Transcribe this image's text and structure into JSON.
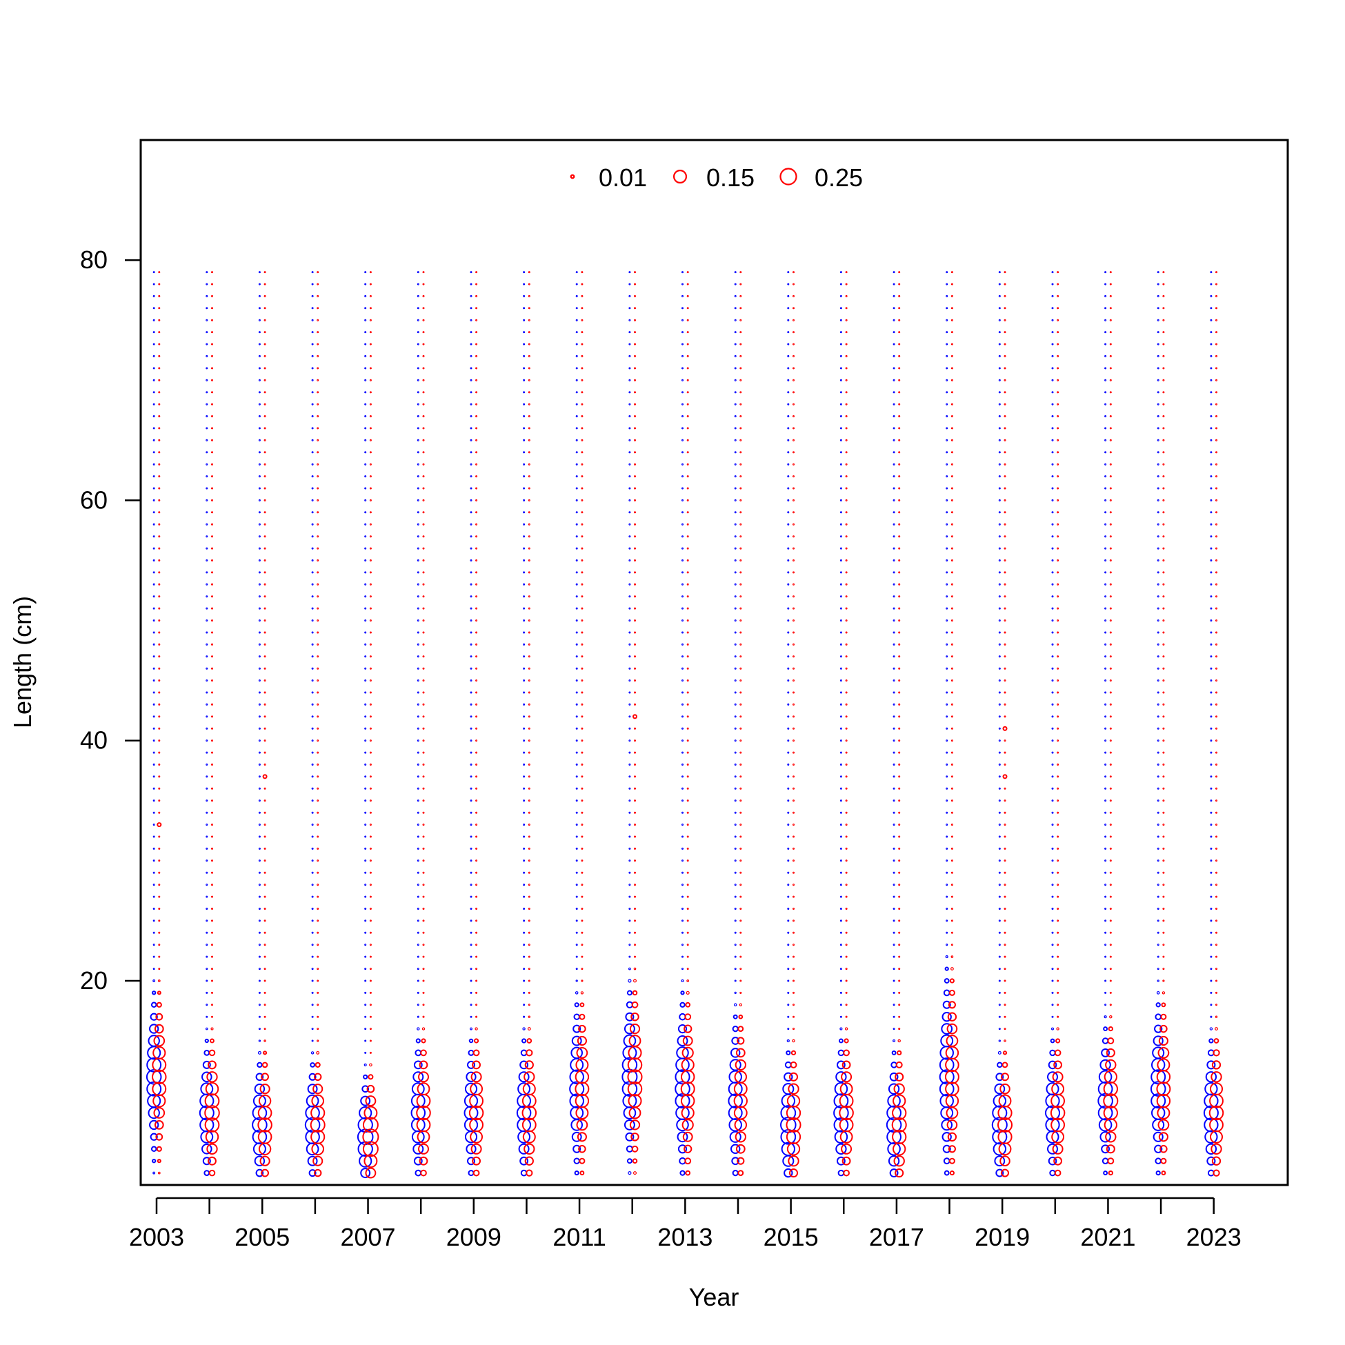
{
  "chart_data": {
    "type": "scatter",
    "subtype": "bubble",
    "xlabel": "Year",
    "ylabel": "Length (cm)",
    "xlim": [
      2002.7,
      2024.4
    ],
    "ylim": [
      3,
      90
    ],
    "x_ticks": [
      2003,
      2004,
      2005,
      2006,
      2007,
      2008,
      2009,
      2010,
      2011,
      2012,
      2013,
      2014,
      2015,
      2016,
      2017,
      2018,
      2019,
      2020,
      2021,
      2022,
      2023
    ],
    "x_tick_labels": [
      "2003",
      "2005",
      "2007",
      "2009",
      "2011",
      "2013",
      "2015",
      "2017",
      "2019",
      "2021",
      "2023"
    ],
    "y_ticks": [
      20,
      40,
      60,
      80
    ],
    "y_tick_labels": [
      "20",
      "40",
      "60",
      "80"
    ],
    "grid": false,
    "legend": {
      "placement": "top-center",
      "entries": [
        "0.01",
        "0.15",
        "0.25"
      ],
      "values": [
        0.01,
        0.15,
        0.25
      ]
    },
    "length_bins": [
      4,
      79
    ],
    "series": [
      {
        "color": "#0000ff",
        "x_offset": -0.05
      },
      {
        "color": "#ff0000",
        "x_offset": 0.05
      }
    ],
    "years": [
      {
        "year": 2003,
        "blue_peak": 12,
        "blue_amp": 0.2,
        "blue_sd": 2.8,
        "red_peak": 12,
        "red_amp": 0.18,
        "red_sd": 2.8,
        "red_outliers": [
          33
        ]
      },
      {
        "year": 2004,
        "blue_peak": 9,
        "blue_amp": 0.19,
        "blue_sd": 2.4,
        "red_peak": 9,
        "red_amp": 0.2,
        "red_sd": 2.5,
        "red_outliers": []
      },
      {
        "year": 2005,
        "blue_peak": 8,
        "blue_amp": 0.2,
        "blue_sd": 2.3,
        "red_peak": 8,
        "red_amp": 0.18,
        "red_sd": 2.4,
        "red_outliers": [
          37
        ]
      },
      {
        "year": 2006,
        "blue_peak": 8,
        "blue_amp": 0.2,
        "blue_sd": 2.2,
        "red_peak": 8,
        "red_amp": 0.19,
        "red_sd": 2.3,
        "red_outliers": []
      },
      {
        "year": 2007,
        "blue_peak": 7,
        "blue_amp": 0.22,
        "blue_sd": 2.1,
        "red_peak": 7,
        "red_amp": 0.23,
        "red_sd": 2.2,
        "red_outliers": []
      },
      {
        "year": 2008,
        "blue_peak": 9,
        "blue_amp": 0.18,
        "blue_sd": 2.6,
        "red_peak": 9,
        "red_amp": 0.18,
        "red_sd": 2.6,
        "red_outliers": []
      },
      {
        "year": 2009,
        "blue_peak": 9,
        "blue_amp": 0.17,
        "blue_sd": 2.5,
        "red_peak": 9,
        "red_amp": 0.18,
        "red_sd": 2.6,
        "red_outliers": []
      },
      {
        "year": 2010,
        "blue_peak": 9,
        "blue_amp": 0.18,
        "blue_sd": 2.6,
        "red_peak": 9,
        "red_amp": 0.18,
        "red_sd": 2.7,
        "red_outliers": []
      },
      {
        "year": 2011,
        "blue_peak": 11,
        "blue_amp": 0.19,
        "blue_sd": 3.0,
        "red_peak": 11,
        "red_amp": 0.17,
        "red_sd": 3.0,
        "red_outliers": []
      },
      {
        "year": 2012,
        "blue_peak": 12,
        "blue_amp": 0.21,
        "blue_sd": 3.1,
        "red_peak": 12,
        "red_amp": 0.19,
        "red_sd": 3.1,
        "red_outliers": [
          42
        ]
      },
      {
        "year": 2013,
        "blue_peak": 11,
        "blue_amp": 0.2,
        "blue_sd": 3.2,
        "red_peak": 11,
        "red_amp": 0.17,
        "red_sd": 3.2,
        "red_outliers": []
      },
      {
        "year": 2014,
        "blue_peak": 10,
        "blue_amp": 0.18,
        "blue_sd": 3.0,
        "red_peak": 10,
        "red_amp": 0.16,
        "red_sd": 3.0,
        "red_outliers": []
      },
      {
        "year": 2015,
        "blue_peak": 8,
        "blue_amp": 0.22,
        "blue_sd": 2.5,
        "red_peak": 8,
        "red_amp": 0.19,
        "red_sd": 2.6,
        "red_outliers": []
      },
      {
        "year": 2016,
        "blue_peak": 9,
        "blue_amp": 0.2,
        "blue_sd": 2.5,
        "red_peak": 9,
        "red_amp": 0.18,
        "red_sd": 2.6,
        "red_outliers": []
      },
      {
        "year": 2017,
        "blue_peak": 8,
        "blue_amp": 0.2,
        "blue_sd": 2.5,
        "red_peak": 8,
        "red_amp": 0.19,
        "red_sd": 2.6,
        "red_outliers": []
      },
      {
        "year": 2018,
        "blue_peak": 12,
        "blue_amp": 0.19,
        "blue_sd": 3.6,
        "red_peak": 12,
        "red_amp": 0.17,
        "red_sd": 3.5,
        "red_outliers": []
      },
      {
        "year": 2019,
        "blue_peak": 8,
        "blue_amp": 0.21,
        "blue_sd": 2.3,
        "red_peak": 8,
        "red_amp": 0.19,
        "red_sd": 2.4,
        "red_outliers": [
          37,
          41
        ]
      },
      {
        "year": 2020,
        "blue_peak": 9,
        "blue_amp": 0.19,
        "blue_sd": 2.5,
        "red_peak": 9,
        "red_amp": 0.18,
        "red_sd": 2.6,
        "red_outliers": []
      },
      {
        "year": 2021,
        "blue_peak": 10,
        "blue_amp": 0.2,
        "blue_sd": 2.5,
        "red_peak": 10,
        "red_amp": 0.19,
        "red_sd": 2.6,
        "red_outliers": []
      },
      {
        "year": 2022,
        "blue_peak": 11,
        "blue_amp": 0.2,
        "blue_sd": 3.0,
        "red_peak": 11,
        "red_amp": 0.17,
        "red_sd": 3.0,
        "red_outliers": []
      },
      {
        "year": 2023,
        "blue_peak": 9,
        "blue_amp": 0.19,
        "blue_sd": 2.6,
        "red_peak": 9,
        "red_amp": 0.18,
        "red_sd": 2.7,
        "red_outliers": []
      }
    ]
  }
}
